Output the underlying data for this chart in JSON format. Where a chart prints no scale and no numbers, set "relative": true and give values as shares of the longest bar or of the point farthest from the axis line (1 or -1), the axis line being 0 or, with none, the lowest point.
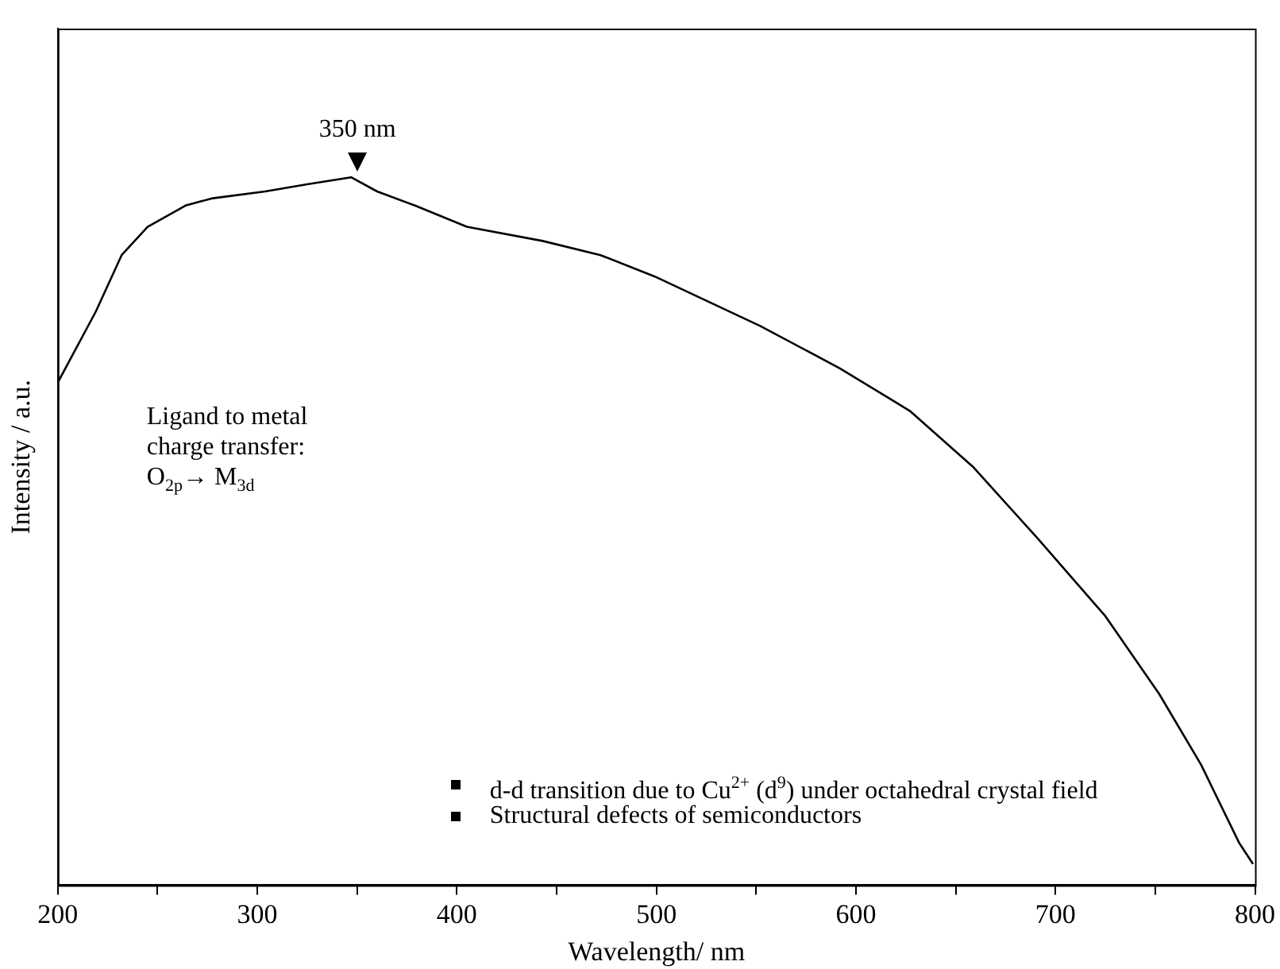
{
  "chart_data": {
    "type": "line",
    "relative": true,
    "xlabel": "Wavelength/ nm",
    "ylabel": "Intensity / a.u.",
    "tick_labels": "x",
    "grid": false,
    "legend": false,
    "marker": "none",
    "line_style": "solid",
    "xlim": [
      200,
      800
    ],
    "xticks": [
      200,
      {
        "value": 250,
        "label": null
      },
      300,
      {
        "value": 350,
        "label": null
      },
      400,
      {
        "value": 450,
        "label": null
      },
      500,
      {
        "value": 550,
        "label": null
      },
      600,
      {
        "value": 650,
        "label": null
      },
      700,
      {
        "value": 750,
        "label": null
      },
      800
    ],
    "x": [
      200,
      219,
      232,
      245,
      264,
      277,
      304,
      325,
      347,
      360,
      379,
      405,
      443,
      472,
      499,
      552,
      592,
      627,
      659,
      691,
      725,
      752,
      773,
      792,
      799
    ],
    "series": [
      {
        "color": "#000000",
        "values": [
          0.71,
          0.81,
          0.89,
          0.93,
          0.96,
          0.97,
          0.98,
          0.99,
          1.0,
          0.98,
          0.96,
          0.93,
          0.91,
          0.89,
          0.86,
          0.79,
          0.73,
          0.67,
          0.59,
          0.49,
          0.38,
          0.27,
          0.17,
          0.06,
          0.03
        ]
      }
    ],
    "annotations": [
      {
        "text": "350 nm",
        "x": 350,
        "y": 1.0
      },
      "Ligand to metal charge transfer:",
      "O$_{2p}$→ M$_{3d}$",
      "d-d transition due to Cu$^{2+}$ (d$^{9}$) under octahedral crystal field",
      "Structural defects of semiconductors"
    ]
  }
}
